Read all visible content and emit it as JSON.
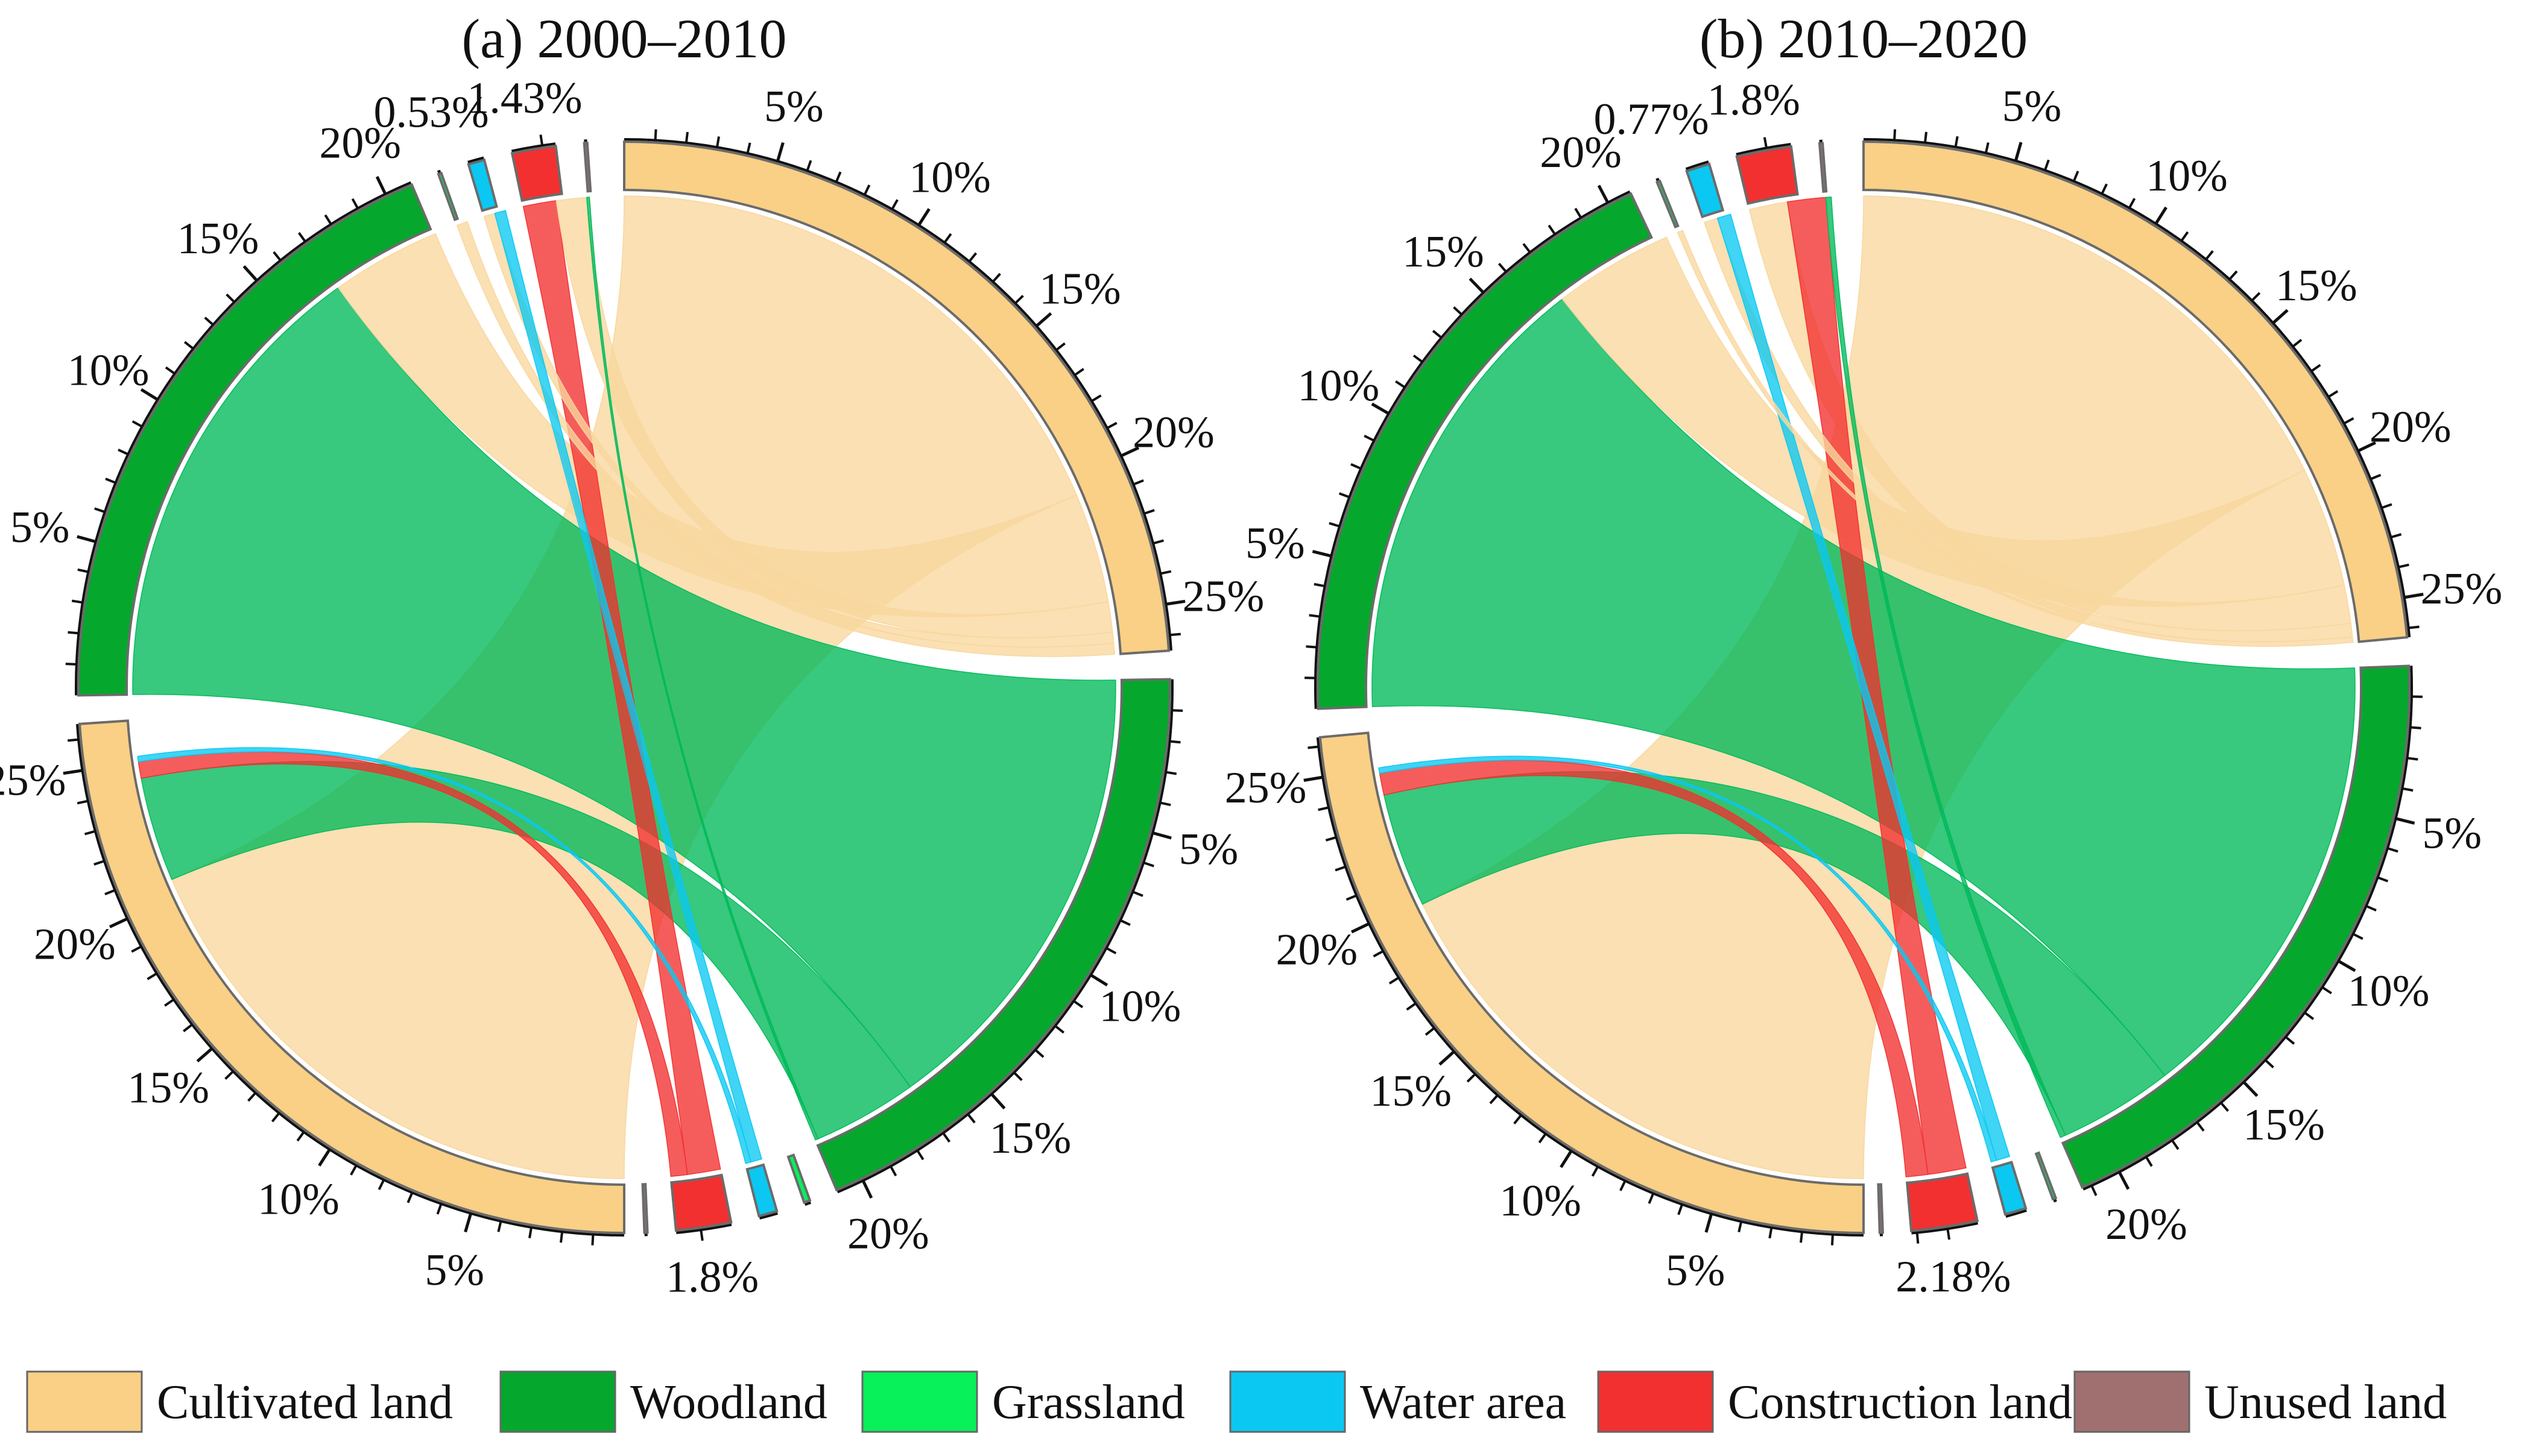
{
  "colors": {
    "cultivated": "#F9D085",
    "cultivated_chord": "#F9D79E",
    "woodland": "#05A82C",
    "woodland_chord": "#00B95A",
    "grassland": "#08F05A",
    "water": "#0AC8F2",
    "construction": "#F23030",
    "unused": "#A07070"
  },
  "legend": [
    {
      "label": "Cultivated land",
      "color": "#F9D085"
    },
    {
      "label": "Woodland",
      "color": "#05A82C"
    },
    {
      "label": "Grassland",
      "color": "#08F05A"
    },
    {
      "label": "Water area",
      "color": "#0AC8F2"
    },
    {
      "label": "Construction land",
      "color": "#F23030"
    },
    {
      "label": "Unused land",
      "color": "#A07070"
    }
  ],
  "chart_data": [
    {
      "type": "chord",
      "title": "(a) 2000–2010",
      "unit": "%",
      "sources": [
        {
          "name": "Cultivated land",
          "value": 26.5
        },
        {
          "name": "Woodland",
          "value": 20.9
        },
        {
          "name": "Grassland",
          "value": 0.2
        },
        {
          "name": "Water area",
          "value": 0.6
        },
        {
          "name": "Construction land",
          "value": 1.8
        },
        {
          "name": "Unused land",
          "value": 0.1
        }
      ],
      "targets": [
        {
          "name": "Cultivated land",
          "value": 26.5
        },
        {
          "name": "Woodland",
          "value": 20.9
        },
        {
          "name": "Grassland",
          "value": 0.1
        },
        {
          "name": "Water area",
          "value": 0.53
        },
        {
          "name": "Construction land",
          "value": 1.43
        },
        {
          "name": "Unused land",
          "value": 0.1
        }
      ],
      "flows": [
        {
          "from": "Cultivated land",
          "to": "Cultivated land",
          "value": 20.6
        },
        {
          "from": "Cultivated land",
          "to": "Woodland",
          "value": 4.0
        },
        {
          "from": "Cultivated land",
          "to": "Construction land",
          "value": 1.1
        },
        {
          "from": "Cultivated land",
          "to": "Water area",
          "value": 0.4
        },
        {
          "from": "Cultivated land",
          "to": "Grassland",
          "value": 0.4
        },
        {
          "from": "Woodland",
          "to": "Woodland",
          "value": 17.0
        },
        {
          "from": "Woodland",
          "to": "Cultivated land",
          "value": 3.8
        },
        {
          "from": "Woodland",
          "to": "Construction land",
          "value": 0.1
        },
        {
          "from": "Construction land",
          "to": "Construction land",
          "value": 1.2
        },
        {
          "from": "Construction land",
          "to": "Cultivated land",
          "value": 0.6
        },
        {
          "from": "Water area",
          "to": "Water area",
          "value": 0.4
        },
        {
          "from": "Water area",
          "to": "Cultivated land",
          "value": 0.2
        }
      ],
      "annotations": {
        "top": "1.8%",
        "bottom_left": "1.43%",
        "bottom_right": "0.53%"
      },
      "tick_labels": [
        "5%",
        "10%",
        "15%",
        "20%",
        "25%"
      ]
    },
    {
      "type": "chord",
      "title": "(b) 2010–2020",
      "unit": "%",
      "sources": [
        {
          "name": "Cultivated land",
          "value": 26.3
        },
        {
          "name": "Woodland",
          "value": 21.3
        },
        {
          "name": "Grassland",
          "value": 0.1
        },
        {
          "name": "Water area",
          "value": 0.7
        },
        {
          "name": "Construction land",
          "value": 2.18
        },
        {
          "name": "Unused land",
          "value": 0.1
        }
      ],
      "targets": [
        {
          "name": "Cultivated land",
          "value": 26.3
        },
        {
          "name": "Woodland",
          "value": 20.8
        },
        {
          "name": "Grassland",
          "value": 0.1
        },
        {
          "name": "Water area",
          "value": 0.77
        },
        {
          "name": "Construction land",
          "value": 1.8
        },
        {
          "name": "Unused land",
          "value": 0.1
        }
      ],
      "flows": [
        {
          "from": "Cultivated land",
          "to": "Cultivated land",
          "value": 19.8
        },
        {
          "from": "Cultivated land",
          "to": "Woodland",
          "value": 4.4
        },
        {
          "from": "Cultivated land",
          "to": "Construction land",
          "value": 1.4
        },
        {
          "from": "Cultivated land",
          "to": "Water area",
          "value": 0.5
        },
        {
          "from": "Cultivated land",
          "to": "Grassland",
          "value": 0.2
        },
        {
          "from": "Woodland",
          "to": "Woodland",
          "value": 16.9
        },
        {
          "from": "Woodland",
          "to": "Cultivated land",
          "value": 4.2
        },
        {
          "from": "Woodland",
          "to": "Construction land",
          "value": 0.2
        },
        {
          "from": "Construction land",
          "to": "Construction land",
          "value": 1.4
        },
        {
          "from": "Construction land",
          "to": "Cultivated land",
          "value": 0.8
        },
        {
          "from": "Water area",
          "to": "Water area",
          "value": 0.5
        },
        {
          "from": "Water area",
          "to": "Cultivated land",
          "value": 0.2
        }
      ],
      "annotations": {
        "top": "2.18%",
        "bottom_left": "1.8%",
        "bottom_right": "0.77%"
      },
      "tick_labels": [
        "5%",
        "10%",
        "15%",
        "20%",
        "25%"
      ]
    }
  ]
}
